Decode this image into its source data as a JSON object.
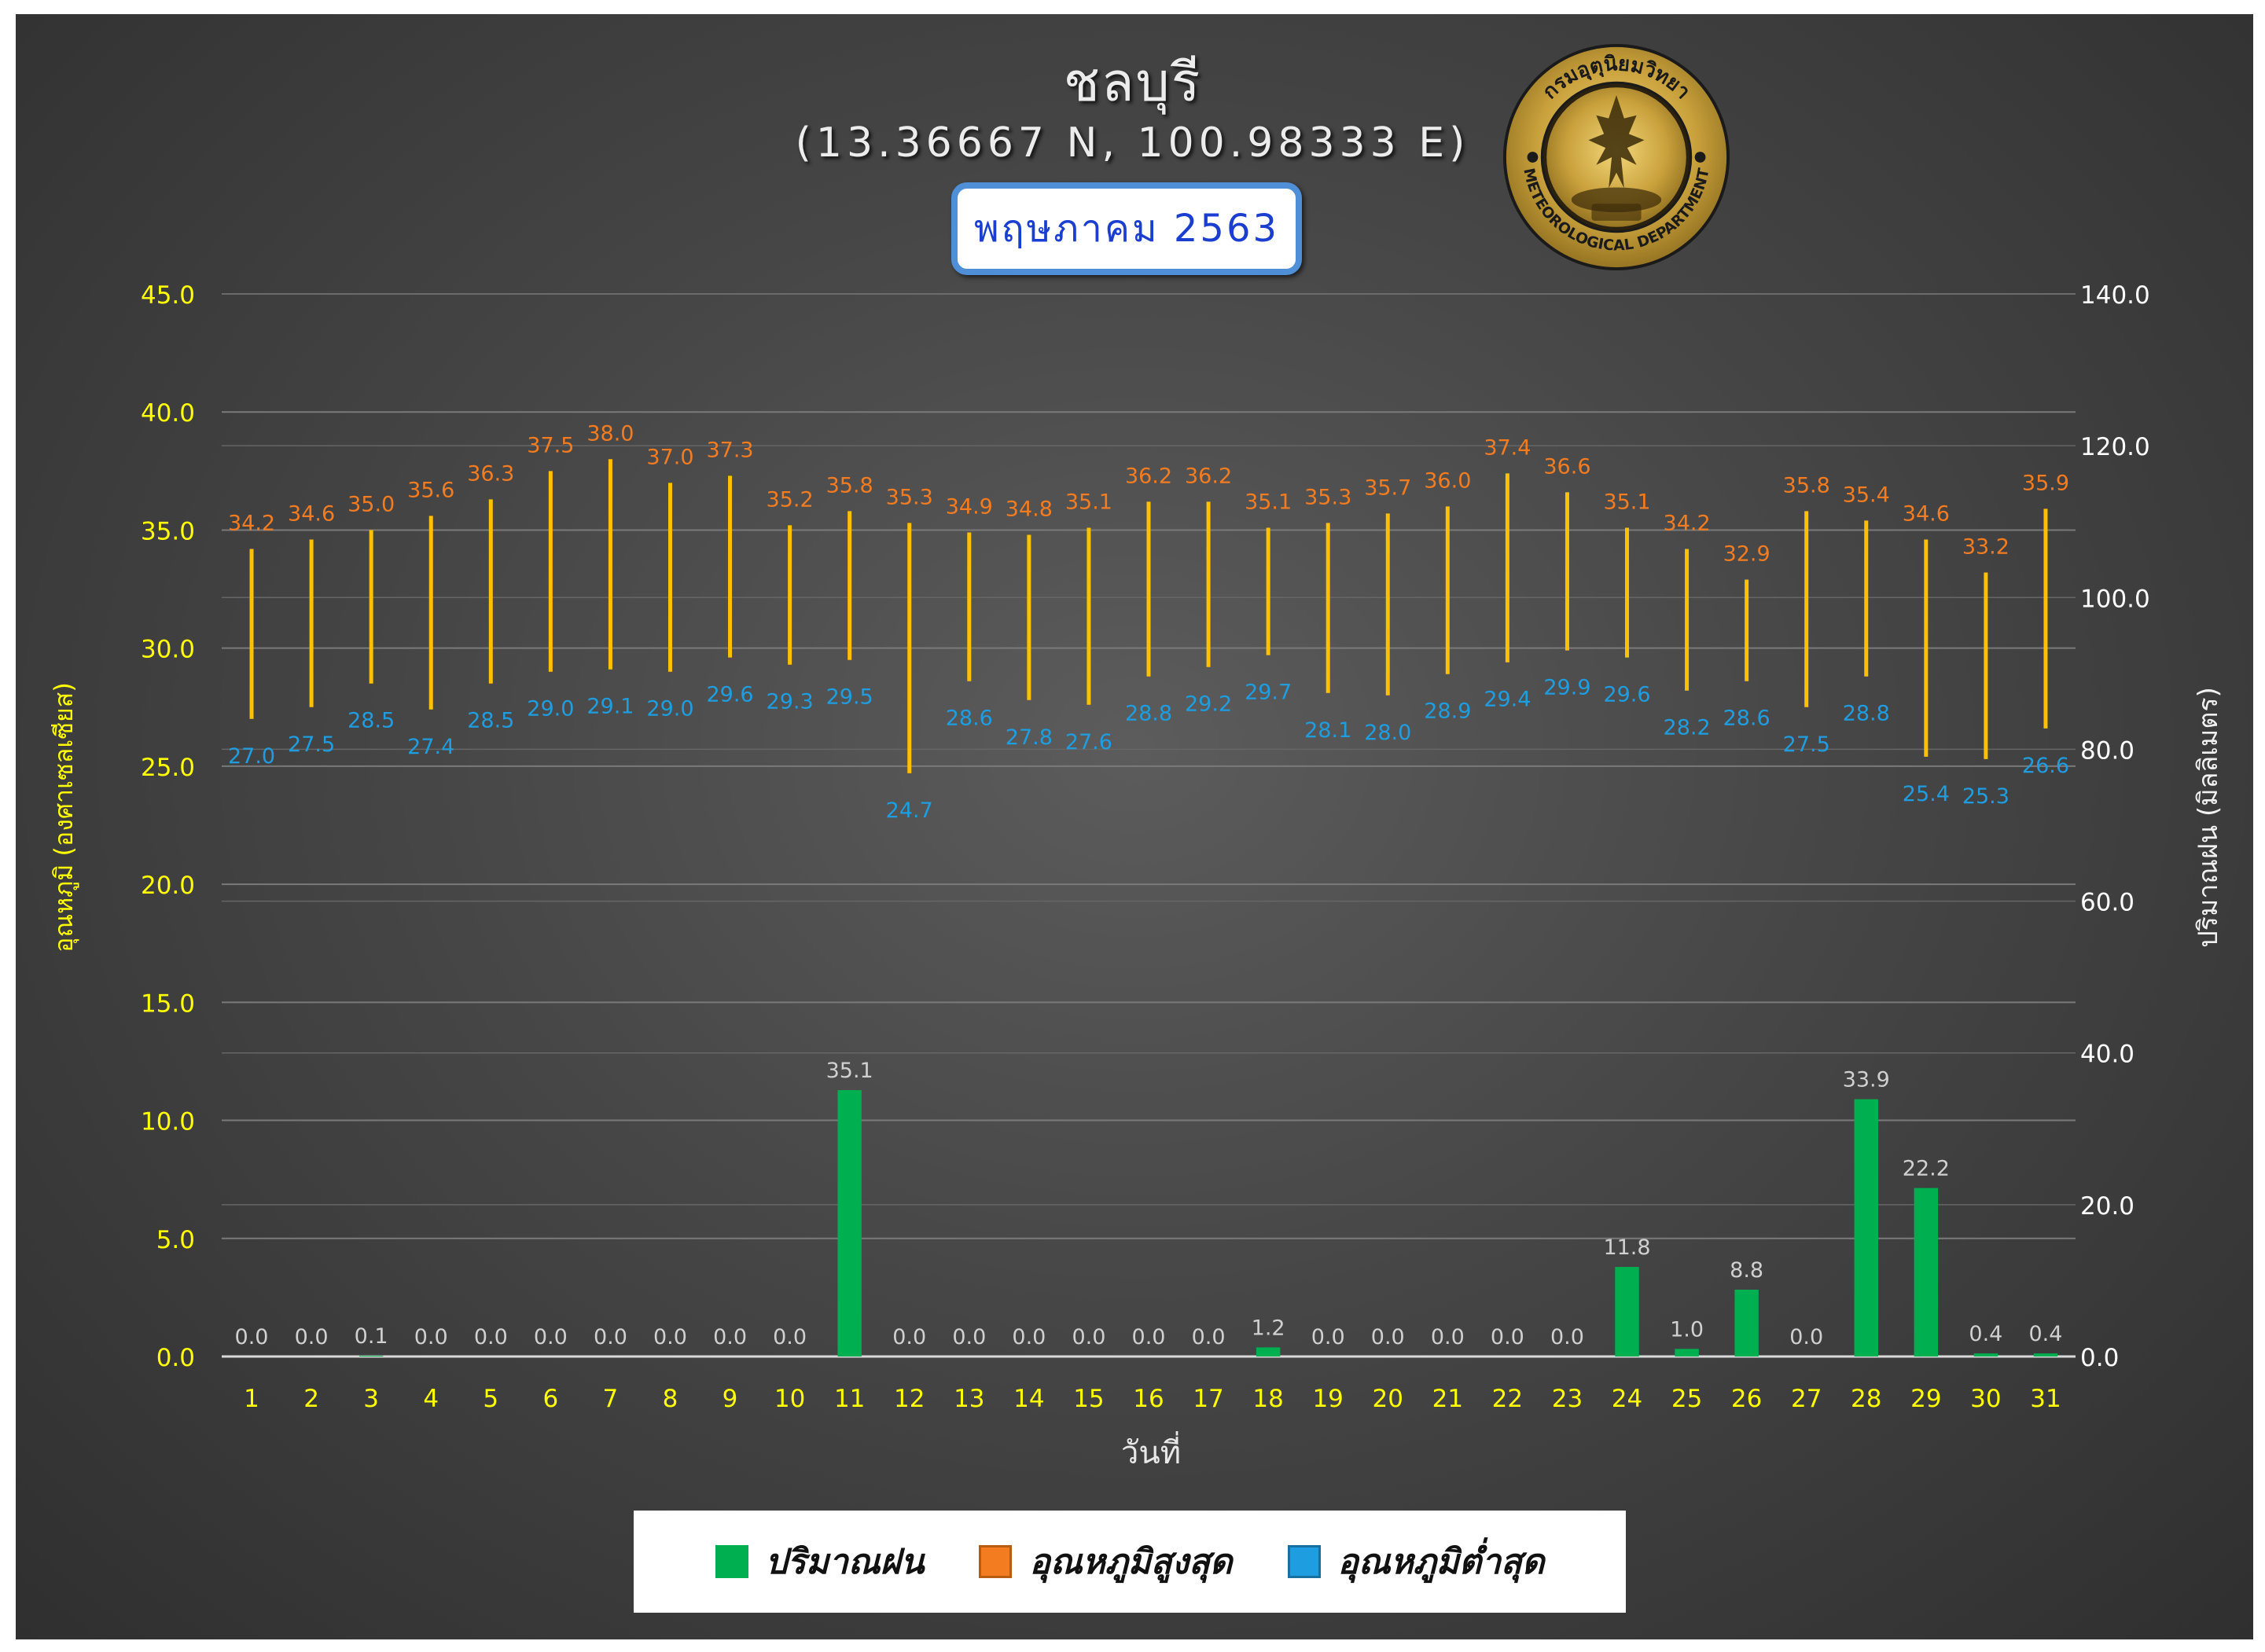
{
  "header": {
    "title": "ชลบุรี",
    "coordinates": "(13.36667 N, 100.98333 E)",
    "month": "พฤษภาคม 2563"
  },
  "logo": {
    "icon": "meteorological-department-seal-icon",
    "text_top": "กรมอุตุนิยมวิทยา",
    "text_bottom": "METEOROLOGICAL DEPARTMENT"
  },
  "colors": {
    "rain": "#00b050",
    "max_temp_label": "#f47c20",
    "min_temp_label": "#1e9ee0",
    "range_line": "#ffc000",
    "left_axis": "#ffff00",
    "right_axis": "#ffffff",
    "grid": "#7a7a7a"
  },
  "legend": {
    "rain": "ปริมาณฝน",
    "max_temp": "อุณหภูมิสูงสุด",
    "min_temp": "อุณหภูมิต่ำสุด"
  },
  "chart_data": {
    "type": "bar",
    "xlabel": "วันที่",
    "ylabel_left": "อุณหภูมิ (องศาเซลเซียส)",
    "ylabel_right": "ปริมาณฝน (มิลลิเมตร)",
    "ylim_left": [
      0,
      45
    ],
    "yticks_left": [
      "0.0",
      "5.0",
      "10.0",
      "15.0",
      "20.0",
      "25.0",
      "30.0",
      "35.0",
      "40.0",
      "45.0"
    ],
    "ylim_right": [
      0,
      140
    ],
    "yticks_right": [
      "0.0",
      "20.0",
      "40.0",
      "60.0",
      "80.0",
      "100.0",
      "120.0",
      "140.0"
    ],
    "grid": true,
    "legend_position": "bottom",
    "categories": [
      "1",
      "2",
      "3",
      "4",
      "5",
      "6",
      "7",
      "8",
      "9",
      "10",
      "11",
      "12",
      "13",
      "14",
      "15",
      "16",
      "17",
      "18",
      "19",
      "20",
      "21",
      "22",
      "23",
      "24",
      "25",
      "26",
      "27",
      "28",
      "29",
      "30",
      "31"
    ],
    "series": [
      {
        "name": "ปริมาณฝน",
        "axis": "right",
        "values": [
          0.0,
          0.0,
          0.1,
          0.0,
          0.0,
          0.0,
          0.0,
          0.0,
          0.0,
          0.0,
          35.1,
          0.0,
          0.0,
          0.0,
          0.0,
          0.0,
          0.0,
          1.2,
          0.0,
          0.0,
          0.0,
          0.0,
          0.0,
          11.8,
          1.0,
          8.8,
          0.0,
          33.9,
          22.2,
          0.4,
          0.4
        ]
      },
      {
        "name": "อุณหภูมิสูงสุด",
        "axis": "left",
        "values": [
          34.2,
          34.6,
          35.0,
          35.6,
          36.3,
          37.5,
          38.0,
          37.0,
          37.3,
          35.2,
          35.8,
          35.3,
          34.9,
          34.8,
          35.1,
          36.2,
          36.2,
          35.1,
          35.3,
          35.7,
          36.0,
          37.4,
          36.6,
          35.1,
          34.2,
          32.9,
          35.8,
          35.4,
          34.6,
          33.2,
          35.9
        ]
      },
      {
        "name": "อุณหภูมิต่ำสุด",
        "axis": "left",
        "values": [
          27.0,
          27.5,
          28.5,
          27.4,
          28.5,
          29.0,
          29.1,
          29.0,
          29.6,
          29.3,
          29.5,
          24.7,
          28.6,
          27.8,
          27.6,
          28.8,
          29.2,
          29.7,
          28.1,
          28.0,
          28.9,
          29.4,
          29.9,
          29.6,
          28.2,
          28.6,
          27.5,
          28.8,
          25.4,
          25.3,
          26.6
        ]
      }
    ]
  }
}
